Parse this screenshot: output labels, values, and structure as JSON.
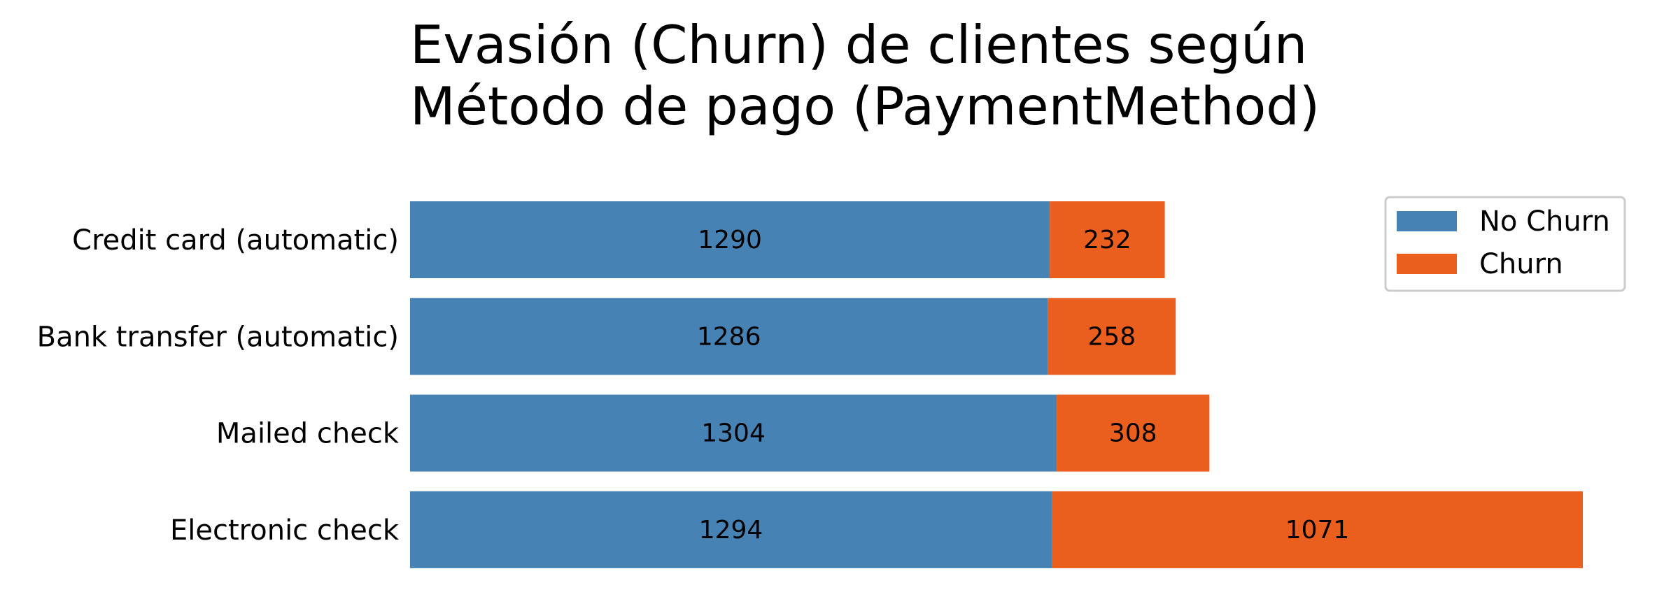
{
  "chart_data": {
    "type": "bar",
    "orientation": "horizontal",
    "stacked": true,
    "title": "Evasión (Churn) de clientes según Método de pago (PaymentMethod)",
    "title_lines": [
      "Evasión (Churn) de clientes según",
      "Método de pago (PaymentMethod)"
    ],
    "xlabel": "",
    "ylabel": "",
    "categories": [
      "Credit card (automatic)",
      "Bank transfer (automatic)",
      "Mailed check",
      "Electronic check"
    ],
    "series": [
      {
        "name": "No Churn",
        "color": "#4682b4",
        "values": [
          1290,
          1286,
          1304,
          1294
        ]
      },
      {
        "name": "Churn",
        "color": "#eb5f1e",
        "values": [
          232,
          258,
          308,
          1071
        ]
      }
    ],
    "xlim": [
      0,
      2365
    ],
    "grid": false,
    "axes_visible": false,
    "legend": {
      "position": "top-right"
    }
  }
}
